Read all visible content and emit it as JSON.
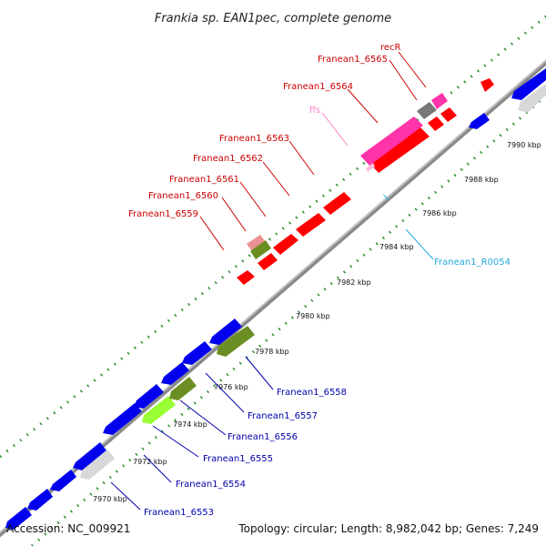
{
  "title": "Frankia sp. EAN1pec, complete genome",
  "accession_text": "Accession: NC_009921",
  "summary_text": "Topology: circular; Length: 8,982,042 bp; Genes: 7,249",
  "colors": {
    "backbone": "#8a8a8a",
    "tick_dots": "#2a8a2a",
    "cds_red": "#ff0000",
    "cds_blue": "#0000ee",
    "cds_pink": "#ff33aa",
    "cds_gray": "#d8d8d8",
    "cds_olive": "#6b8e23",
    "cds_lime": "#99ff33",
    "cds_darkgray": "#777777",
    "label_fwd": "#cc0000",
    "label_rev": "#0000aa",
    "label_trna": "#22aadd",
    "label_rna": "#ff88cc"
  },
  "ticks": [
    "7970 kbp",
    "7972 kbp",
    "7974 kbp",
    "7976 kbp",
    "7978 kbp",
    "7980 kbp",
    "7982 kbp",
    "7984 kbp",
    "7986 kbp",
    "7988 kbp",
    "7990 kbp"
  ],
  "labels_forward": [
    "Franean1_6559",
    "Franean1_6560",
    "Franean1_6561",
    "Franean1_6562",
    "Franean1_6563",
    "ffs",
    "Franean1_6564",
    "Franean1_6565",
    "recR"
  ],
  "labels_reverse": [
    "Franean1_6553",
    "Franean1_6554",
    "Franean1_6555",
    "Franean1_6556",
    "Franean1_6557",
    "Franean1_6558",
    "Franean1_R0054"
  ]
}
